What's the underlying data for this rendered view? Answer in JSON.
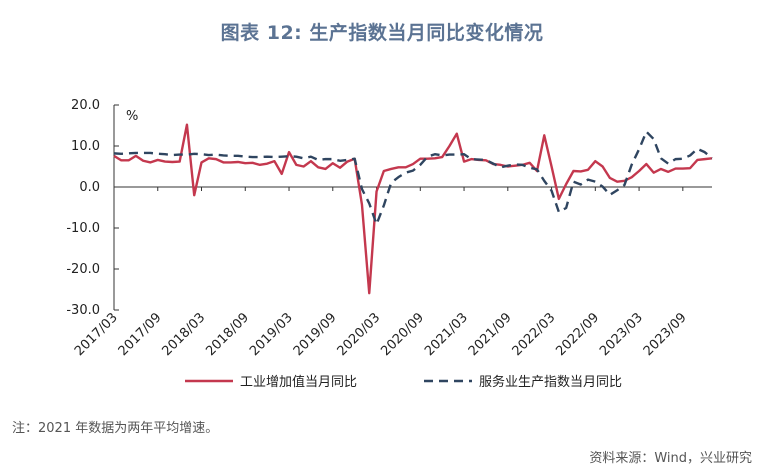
{
  "title": "图表 12: 生产指数当月同比变化情况",
  "note": "注：2021 年数据为两年平均增速。",
  "source": "资料来源：Wind，兴业研究",
  "chart_data": {
    "type": "line",
    "unit_label": "%",
    "ylim": [
      -30,
      20
    ],
    "yticks": [
      "20.0",
      "10.0",
      "0.0",
      "-10.0",
      "-20.0",
      "-30.0"
    ],
    "ytick_values": [
      20,
      10,
      0,
      -10,
      -20,
      -30
    ],
    "xlim": [
      "2017/03",
      "2024/01"
    ],
    "xticks": [
      "2017/03",
      "2017/09",
      "2018/03",
      "2018/09",
      "2019/03",
      "2019/09",
      "2020/03",
      "2020/09",
      "2021/03",
      "2021/09",
      "2022/03",
      "2022/09",
      "2023/03",
      "2023/09"
    ],
    "grid": false,
    "legend_position": "bottom",
    "series": [
      {
        "name": "工业增加值当月同比",
        "color": "#c4384e",
        "dash": "solid",
        "points": [
          [
            "2017/03",
            7.6
          ],
          [
            "2017/04",
            6.5
          ],
          [
            "2017/05",
            6.5
          ],
          [
            "2017/06",
            7.6
          ],
          [
            "2017/07",
            6.4
          ],
          [
            "2017/08",
            6.0
          ],
          [
            "2017/09",
            6.6
          ],
          [
            "2017/10",
            6.2
          ],
          [
            "2017/11",
            6.1
          ],
          [
            "2017/12",
            6.2
          ],
          [
            "2018/01",
            15.2
          ],
          [
            "2018/02",
            -2.0
          ],
          [
            "2018/03",
            6.0
          ],
          [
            "2018/04",
            7.0
          ],
          [
            "2018/05",
            6.8
          ],
          [
            "2018/06",
            6.0
          ],
          [
            "2018/07",
            6.0
          ],
          [
            "2018/08",
            6.1
          ],
          [
            "2018/09",
            5.8
          ],
          [
            "2018/10",
            5.9
          ],
          [
            "2018/11",
            5.4
          ],
          [
            "2018/12",
            5.7
          ],
          [
            "2019/01",
            6.3
          ],
          [
            "2019/02",
            3.2
          ],
          [
            "2019/03",
            8.5
          ],
          [
            "2019/04",
            5.4
          ],
          [
            "2019/05",
            5.0
          ],
          [
            "2019/06",
            6.3
          ],
          [
            "2019/07",
            4.8
          ],
          [
            "2019/08",
            4.4
          ],
          [
            "2019/09",
            5.8
          ],
          [
            "2019/10",
            4.7
          ],
          [
            "2019/11",
            6.2
          ],
          [
            "2019/12",
            6.9
          ],
          [
            "2020/01",
            -4.3
          ],
          [
            "2020/02",
            -25.9
          ],
          [
            "2020/03",
            -1.1
          ],
          [
            "2020/04",
            3.9
          ],
          [
            "2020/05",
            4.4
          ],
          [
            "2020/06",
            4.8
          ],
          [
            "2020/07",
            4.8
          ],
          [
            "2020/08",
            5.6
          ],
          [
            "2020/09",
            6.9
          ],
          [
            "2020/10",
            6.9
          ],
          [
            "2020/11",
            7.0
          ],
          [
            "2020/12",
            7.3
          ],
          [
            "2021/01",
            10.0
          ],
          [
            "2021/02",
            13.0
          ],
          [
            "2021/03",
            6.2
          ],
          [
            "2021/04",
            6.8
          ],
          [
            "2021/05",
            6.6
          ],
          [
            "2021/06",
            6.5
          ],
          [
            "2021/07",
            5.6
          ],
          [
            "2021/08",
            5.4
          ],
          [
            "2021/09",
            5.0
          ],
          [
            "2021/10",
            5.2
          ],
          [
            "2021/11",
            5.4
          ],
          [
            "2021/12",
            5.9
          ],
          [
            "2022/01",
            3.9
          ],
          [
            "2022/02",
            12.6
          ],
          [
            "2022/03",
            5.0
          ],
          [
            "2022/04",
            -2.9
          ],
          [
            "2022/05",
            0.7
          ],
          [
            "2022/06",
            3.9
          ],
          [
            "2022/07",
            3.8
          ],
          [
            "2022/08",
            4.2
          ],
          [
            "2022/09",
            6.3
          ],
          [
            "2022/10",
            5.0
          ],
          [
            "2022/11",
            2.2
          ],
          [
            "2022/12",
            1.3
          ],
          [
            "2023/01",
            1.5
          ],
          [
            "2023/02",
            2.4
          ],
          [
            "2023/03",
            3.9
          ],
          [
            "2023/04",
            5.6
          ],
          [
            "2023/05",
            3.5
          ],
          [
            "2023/06",
            4.4
          ],
          [
            "2023/07",
            3.7
          ],
          [
            "2023/08",
            4.5
          ],
          [
            "2023/09",
            4.5
          ],
          [
            "2023/10",
            4.6
          ],
          [
            "2023/11",
            6.6
          ],
          [
            "2023/12",
            6.8
          ],
          [
            "2024/01",
            7.0
          ]
        ]
      },
      {
        "name": "服务业生产指数当月同比",
        "color": "#2f4560",
        "dash": "dashed",
        "points": [
          [
            "2017/03",
            8.2
          ],
          [
            "2017/04",
            8.1
          ],
          [
            "2017/05",
            8.2
          ],
          [
            "2017/06",
            8.3
          ],
          [
            "2017/07",
            8.3
          ],
          [
            "2017/08",
            8.3
          ],
          [
            "2017/09",
            8.1
          ],
          [
            "2017/10",
            8.0
          ],
          [
            "2017/11",
            7.8
          ],
          [
            "2017/12",
            7.9
          ],
          [
            "2018/01",
            7.9
          ],
          [
            "2018/02",
            8.1
          ],
          [
            "2018/03",
            8.0
          ],
          [
            "2018/04",
            7.8
          ],
          [
            "2018/05",
            7.9
          ],
          [
            "2018/06",
            7.7
          ],
          [
            "2018/07",
            7.6
          ],
          [
            "2018/08",
            7.6
          ],
          [
            "2018/09",
            7.4
          ],
          [
            "2018/10",
            7.3
          ],
          [
            "2018/11",
            7.3
          ],
          [
            "2018/12",
            7.4
          ],
          [
            "2019/01",
            7.3
          ],
          [
            "2019/02",
            7.4
          ],
          [
            "2019/03",
            7.5
          ],
          [
            "2019/04",
            7.4
          ],
          [
            "2019/05",
            7.0
          ],
          [
            "2019/06",
            7.4
          ],
          [
            "2019/07",
            6.6
          ],
          [
            "2019/08",
            6.8
          ],
          [
            "2019/09",
            6.8
          ],
          [
            "2019/10",
            6.4
          ],
          [
            "2019/11",
            6.6
          ],
          [
            "2019/12",
            6.9
          ],
          [
            "2020/01",
            -0.5
          ],
          [
            "2020/02",
            -4.0
          ],
          [
            "2020/03",
            -9.1
          ],
          [
            "2020/04",
            -4.5
          ],
          [
            "2020/05",
            1.0
          ],
          [
            "2020/06",
            2.4
          ],
          [
            "2020/07",
            3.5
          ],
          [
            "2020/08",
            4.0
          ],
          [
            "2020/09",
            5.4
          ],
          [
            "2020/10",
            7.4
          ],
          [
            "2020/11",
            8.0
          ],
          [
            "2020/12",
            7.7
          ],
          [
            "2021/01",
            7.9
          ],
          [
            "2021/02",
            7.9
          ],
          [
            "2021/03",
            8.0
          ],
          [
            "2021/04",
            6.8
          ],
          [
            "2021/05",
            6.7
          ],
          [
            "2021/06",
            6.6
          ],
          [
            "2021/07",
            5.7
          ],
          [
            "2021/08",
            4.8
          ],
          [
            "2021/09",
            5.2
          ],
          [
            "2021/10",
            5.5
          ],
          [
            "2021/11",
            5.4
          ],
          [
            "2021/12",
            4.7
          ],
          [
            "2022/01",
            4.3
          ],
          [
            "2022/02",
            1.5
          ],
          [
            "2022/03",
            -0.9
          ],
          [
            "2022/04",
            -6.1
          ],
          [
            "2022/05",
            -5.1
          ],
          [
            "2022/06",
            1.3
          ],
          [
            "2022/07",
            0.6
          ],
          [
            "2022/08",
            1.8
          ],
          [
            "2022/09",
            1.3
          ],
          [
            "2022/10",
            0.1
          ],
          [
            "2022/11",
            -1.9
          ],
          [
            "2022/12",
            -0.8
          ],
          [
            "2023/01",
            0.5
          ],
          [
            "2023/02",
            5.5
          ],
          [
            "2023/03",
            9.2
          ],
          [
            "2023/04",
            13.5
          ],
          [
            "2023/05",
            11.7
          ],
          [
            "2023/06",
            7.0
          ],
          [
            "2023/07",
            5.7
          ],
          [
            "2023/08",
            6.8
          ],
          [
            "2023/09",
            6.9
          ],
          [
            "2023/10",
            7.7
          ],
          [
            "2023/11",
            9.3
          ],
          [
            "2023/12",
            8.5
          ],
          [
            "2024/01",
            7.0
          ]
        ]
      }
    ]
  }
}
